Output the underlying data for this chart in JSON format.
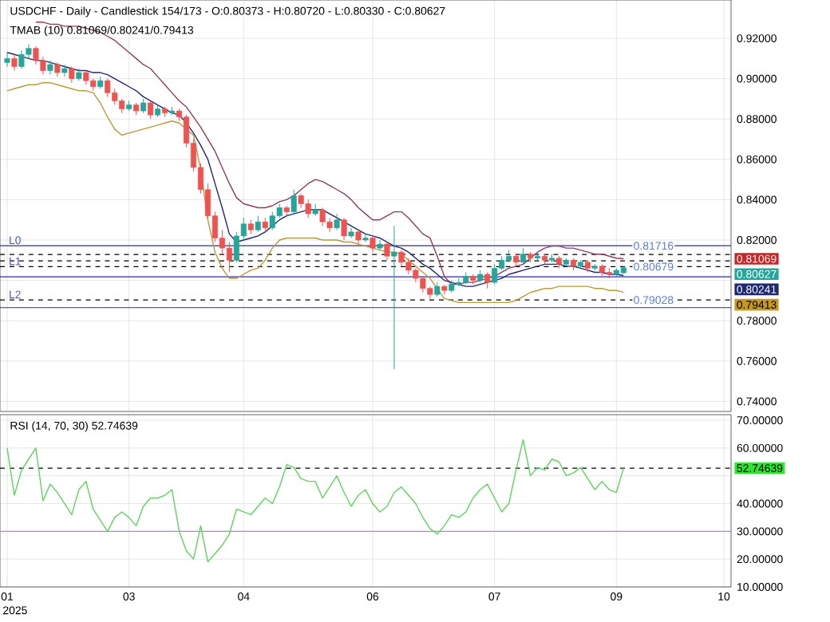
{
  "chart_data": [
    {
      "type": "candlestick",
      "title": "USDCHF - Daily - Candlestick 154/173 - O:0.80373 - H:0.80720 - L:0.80330 - C:0.80627",
      "subtitle": "TMAB (10) 0.81069/0.80241/0.79413",
      "categories": [
        "01",
        null,
        null,
        null,
        null,
        null,
        null,
        null,
        null,
        null,
        null,
        null,
        null,
        null,
        null,
        null,
        null,
        "03",
        null,
        null,
        null,
        null,
        null,
        null,
        null,
        null,
        null,
        null,
        null,
        null,
        null,
        null,
        null,
        "04",
        null,
        null,
        null,
        null,
        null,
        null,
        null,
        null,
        null,
        null,
        null,
        null,
        null,
        null,
        null,
        null,
        null,
        "06",
        null,
        null,
        null,
        null,
        null,
        null,
        null,
        null,
        null,
        null,
        null,
        null,
        null,
        null,
        null,
        null,
        "07",
        null,
        null,
        null,
        null,
        null,
        null,
        null,
        null,
        null,
        null,
        null,
        null,
        null,
        null,
        null,
        null,
        "09",
        null,
        null,
        null,
        null,
        null,
        null,
        null,
        null,
        null,
        null,
        null,
        null,
        null,
        null,
        "10"
      ],
      "ohlc": [
        [
          0.908,
          0.913,
          0.906,
          0.91
        ],
        [
          0.91,
          0.912,
          0.904,
          0.906
        ],
        [
          0.906,
          0.914,
          0.905,
          0.912
        ],
        [
          0.912,
          0.917,
          0.91,
          0.915
        ],
        [
          0.915,
          0.916,
          0.907,
          0.909
        ],
        [
          0.909,
          0.911,
          0.902,
          0.904
        ],
        [
          0.904,
          0.909,
          0.902,
          0.907
        ],
        [
          0.907,
          0.908,
          0.901,
          0.903
        ],
        [
          0.903,
          0.907,
          0.901,
          0.905
        ],
        [
          0.905,
          0.906,
          0.898,
          0.9
        ],
        [
          0.9,
          0.905,
          0.899,
          0.903
        ],
        [
          0.903,
          0.904,
          0.897,
          0.899
        ],
        [
          0.899,
          0.9,
          0.894,
          0.896
        ],
        [
          0.896,
          0.901,
          0.895,
          0.899
        ],
        [
          0.899,
          0.9,
          0.891,
          0.893
        ],
        [
          0.893,
          0.895,
          0.887,
          0.889
        ],
        [
          0.889,
          0.89,
          0.883,
          0.885
        ],
        [
          0.885,
          0.889,
          0.884,
          0.887
        ],
        [
          0.887,
          0.888,
          0.882,
          0.884
        ],
        [
          0.884,
          0.89,
          0.883,
          0.888
        ],
        [
          0.888,
          0.889,
          0.88,
          0.882
        ],
        [
          0.882,
          0.887,
          0.881,
          0.885
        ],
        [
          0.885,
          0.886,
          0.881,
          0.883
        ],
        [
          0.883,
          0.886,
          0.882,
          0.884
        ],
        [
          0.884,
          0.885,
          0.879,
          0.881
        ],
        [
          0.881,
          0.882,
          0.866,
          0.868
        ],
        [
          0.868,
          0.87,
          0.854,
          0.856
        ],
        [
          0.856,
          0.858,
          0.843,
          0.845
        ],
        [
          0.845,
          0.848,
          0.83,
          0.832
        ],
        [
          0.832,
          0.834,
          0.819,
          0.821
        ],
        [
          0.821,
          0.825,
          0.813,
          0.816
        ],
        [
          0.816,
          0.819,
          0.804,
          0.81
        ],
        [
          0.81,
          0.824,
          0.809,
          0.822
        ],
        [
          0.822,
          0.831,
          0.82,
          0.828
        ],
        [
          0.828,
          0.83,
          0.823,
          0.825
        ],
        [
          0.825,
          0.832,
          0.824,
          0.829
        ],
        [
          0.829,
          0.831,
          0.824,
          0.826
        ],
        [
          0.826,
          0.834,
          0.825,
          0.832
        ],
        [
          0.832,
          0.838,
          0.831,
          0.836
        ],
        [
          0.836,
          0.837,
          0.832,
          0.834
        ],
        [
          0.834,
          0.845,
          0.833,
          0.842
        ],
        [
          0.842,
          0.843,
          0.836,
          0.838
        ],
        [
          0.838,
          0.84,
          0.831,
          0.833
        ],
        [
          0.833,
          0.838,
          0.832,
          0.835
        ],
        [
          0.835,
          0.836,
          0.827,
          0.829
        ],
        [
          0.829,
          0.831,
          0.824,
          0.826
        ],
        [
          0.826,
          0.833,
          0.825,
          0.83
        ],
        [
          0.83,
          0.831,
          0.82,
          0.822
        ],
        [
          0.822,
          0.826,
          0.821,
          0.824
        ],
        [
          0.824,
          0.825,
          0.818,
          0.82
        ],
        [
          0.82,
          0.823,
          0.819,
          0.821
        ],
        [
          0.821,
          0.822,
          0.814,
          0.816
        ],
        [
          0.816,
          0.82,
          0.815,
          0.818
        ],
        [
          0.818,
          0.819,
          0.81,
          0.812
        ],
        [
          0.812,
          0.827,
          0.756,
          0.814
        ],
        [
          0.814,
          0.815,
          0.807,
          0.809
        ],
        [
          0.809,
          0.811,
          0.803,
          0.805
        ],
        [
          0.805,
          0.806,
          0.799,
          0.801
        ],
        [
          0.801,
          0.802,
          0.794,
          0.796
        ],
        [
          0.796,
          0.797,
          0.791,
          0.793
        ],
        [
          0.793,
          0.799,
          0.792,
          0.797
        ],
        [
          0.797,
          0.798,
          0.793,
          0.795
        ],
        [
          0.795,
          0.8,
          0.794,
          0.798
        ],
        [
          0.798,
          0.801,
          0.797,
          0.799
        ],
        [
          0.799,
          0.804,
          0.798,
          0.802
        ],
        [
          0.802,
          0.803,
          0.798,
          0.8
        ],
        [
          0.8,
          0.805,
          0.799,
          0.803
        ],
        [
          0.803,
          0.804,
          0.796,
          0.799
        ],
        [
          0.799,
          0.808,
          0.798,
          0.806
        ],
        [
          0.806,
          0.812,
          0.805,
          0.81
        ],
        [
          0.81,
          0.815,
          0.809,
          0.812
        ],
        [
          0.812,
          0.813,
          0.807,
          0.809
        ],
        [
          0.809,
          0.816,
          0.808,
          0.813
        ],
        [
          0.813,
          0.814,
          0.809,
          0.811
        ],
        [
          0.811,
          0.814,
          0.81,
          0.812
        ],
        [
          0.812,
          0.813,
          0.808,
          0.81
        ],
        [
          0.81,
          0.813,
          0.809,
          0.811
        ],
        [
          0.811,
          0.812,
          0.806,
          0.808
        ],
        [
          0.808,
          0.811,
          0.807,
          0.81
        ],
        [
          0.81,
          0.811,
          0.805,
          0.807
        ],
        [
          0.807,
          0.81,
          0.806,
          0.809
        ],
        [
          0.809,
          0.81,
          0.804,
          0.806
        ],
        [
          0.806,
          0.808,
          0.805,
          0.807
        ],
        [
          0.807,
          0.808,
          0.802,
          0.804
        ],
        [
          0.804,
          0.806,
          0.801,
          0.803
        ],
        [
          0.803,
          0.806,
          0.802,
          0.805
        ],
        [
          0.80373,
          0.8072,
          0.8033,
          0.80627
        ],
        null,
        null,
        null,
        null,
        null,
        null,
        null,
        null,
        null,
        null,
        null,
        null,
        null,
        null
      ],
      "colors": [
        "#26a69a",
        "#ef5350",
        "#26a69a",
        "#26a69a",
        "#ef5350",
        "#ef5350",
        "#26a69a",
        "#ef5350",
        "#26a69a",
        "#ef5350",
        "#26a69a",
        "#ef5350",
        "#ef5350",
        "#26a69a",
        "#ef5350",
        "#ef5350",
        "#ef5350",
        "#26a69a",
        "#ef5350",
        "#26a69a",
        "#ef5350",
        "#26a69a",
        "#ef5350",
        "#26a69a",
        "#ef5350",
        "#ef5350",
        "#ef5350",
        "#ef5350",
        "#ef5350",
        "#ef5350",
        "#ef5350",
        "#ef5350",
        "#26a69a",
        "#26a69a",
        "#ef5350",
        "#26a69a",
        "#ef5350",
        "#26a69a",
        "#26a69a",
        "#ef5350",
        "#26a69a",
        "#ef5350",
        "#ef5350",
        "#26a69a",
        "#ef5350",
        "#ef5350",
        "#26a69a",
        "#ef5350",
        "#26a69a",
        "#ef5350",
        "#26a69a",
        "#ef5350",
        "#26a69a",
        "#ef5350",
        "#26a69a",
        "#ef5350",
        "#ef5350",
        "#ef5350",
        "#ef5350",
        "#ef5350",
        "#26a69a",
        "#ef5350",
        "#26a69a",
        "#26a69a",
        "#26a69a",
        "#ef5350",
        "#26a69a",
        "#ef5350",
        "#26a69a",
        "#26a69a",
        "#26a69a",
        "#ef5350",
        "#26a69a",
        "#ef5350",
        "#26a69a",
        "#ef5350",
        "#26a69a",
        "#ef5350",
        "#26a69a",
        "#ef5350",
        "#26a69a",
        "#ef5350",
        "#26a69a",
        "#ef5350",
        "#ef5350",
        "#26a69a",
        "#26a69a",
        null,
        null,
        null,
        null,
        null,
        null,
        null,
        null,
        null,
        null,
        null,
        null,
        null,
        null
      ],
      "series": [
        {
          "type": "line",
          "color": "#8e3b5e",
          "values": [
            null,
            null,
            null,
            null,
            0.928,
            0.928,
            0.927,
            0.927,
            0.926,
            0.926,
            0.926,
            0.925,
            0.924,
            0.923,
            0.921,
            0.919,
            0.916,
            0.913,
            0.91,
            0.907,
            0.905,
            0.901,
            0.897,
            0.893,
            0.889,
            0.886,
            0.881,
            0.876,
            0.87,
            0.864,
            0.856,
            0.848,
            0.841,
            0.838,
            0.837,
            0.836,
            0.836,
            0.837,
            0.839,
            0.84,
            0.842,
            0.845,
            0.848,
            0.85,
            0.849,
            0.847,
            0.845,
            0.843,
            0.84,
            0.836,
            0.833,
            0.83,
            0.83,
            0.832,
            0.834,
            0.834,
            0.831,
            0.827,
            0.823,
            0.821,
            0.812,
            0.802,
            0.798,
            0.798,
            0.799,
            0.799,
            0.8,
            0.801,
            0.802,
            0.804,
            0.806,
            0.807,
            0.808,
            0.811,
            0.814,
            0.816,
            0.817,
            0.817,
            0.816,
            0.816,
            0.815,
            0.814,
            0.813,
            0.813,
            0.812,
            0.811,
            0.81069,
            null,
            null,
            null,
            null,
            null,
            null,
            null,
            null,
            null,
            null,
            null,
            null,
            null,
            null
          ]
        },
        {
          "type": "line",
          "color": "#1f2a6e",
          "values": [
            0.913,
            0.912,
            0.911,
            0.91,
            0.909,
            0.909,
            0.908,
            0.907,
            0.906,
            0.905,
            0.904,
            0.904,
            0.903,
            0.903,
            0.902,
            0.9,
            0.898,
            0.896,
            0.894,
            0.891,
            0.889,
            0.887,
            0.885,
            0.883,
            0.882,
            0.878,
            0.873,
            0.867,
            0.86,
            0.848,
            0.836,
            0.823,
            0.819,
            0.82,
            0.821,
            0.822,
            0.824,
            0.827,
            0.83,
            0.832,
            0.833,
            0.834,
            0.835,
            0.835,
            0.835,
            0.833,
            0.831,
            0.829,
            0.827,
            0.825,
            0.823,
            0.822,
            0.821,
            0.819,
            0.817,
            0.816,
            0.814,
            0.811,
            0.808,
            0.806,
            0.803,
            0.8,
            0.799,
            0.798,
            0.797,
            0.797,
            0.798,
            0.799,
            0.8,
            0.801,
            0.803,
            0.804,
            0.805,
            0.806,
            0.807,
            0.808,
            0.808,
            0.808,
            0.807,
            0.807,
            0.806,
            0.805,
            0.804,
            0.804,
            0.803,
            0.803,
            0.80241,
            null,
            null,
            null,
            null,
            null,
            null,
            null,
            null,
            null,
            null,
            null,
            null,
            null,
            null
          ]
        },
        {
          "type": "line",
          "color": "#b89a3a",
          "values": [
            0.894,
            0.895,
            0.896,
            0.897,
            0.897,
            0.898,
            0.898,
            0.897,
            0.896,
            0.895,
            0.894,
            0.894,
            0.893,
            0.888,
            0.881,
            0.875,
            0.872,
            0.873,
            0.874,
            0.875,
            0.876,
            0.877,
            0.878,
            0.879,
            0.878,
            0.875,
            0.872,
            0.855,
            0.83,
            0.814,
            0.806,
            0.801,
            0.801,
            0.803,
            0.805,
            0.806,
            0.81,
            0.816,
            0.82,
            0.821,
            0.821,
            0.821,
            0.821,
            0.821,
            0.82,
            0.82,
            0.82,
            0.819,
            0.819,
            0.818,
            0.817,
            0.816,
            0.815,
            0.814,
            0.814,
            0.813,
            0.81,
            0.807,
            0.804,
            0.801,
            0.796,
            0.791,
            0.79,
            0.789,
            0.789,
            0.789,
            0.789,
            0.789,
            0.789,
            0.789,
            0.789,
            0.79,
            0.792,
            0.794,
            0.795,
            0.796,
            0.796,
            0.797,
            0.797,
            0.797,
            0.797,
            0.797,
            0.796,
            0.796,
            0.795,
            0.795,
            0.79413,
            null,
            null,
            null,
            null,
            null,
            null,
            null,
            null,
            null,
            null,
            null,
            null,
            null,
            null
          ]
        }
      ],
      "ylim": [
        0.735,
        0.939
      ],
      "yticks": [
        {
          "value": 0.74,
          "label": "0.74000"
        },
        {
          "value": 0.76,
          "label": "0.76000"
        },
        {
          "value": 0.78,
          "label": "0.78000"
        },
        {
          "value": 0.8,
          "label": null
        },
        {
          "value": 0.82,
          "label": "0.82000"
        },
        {
          "value": 0.84,
          "label": "0.84000"
        },
        {
          "value": 0.86,
          "label": "0.86000"
        },
        {
          "value": 0.88,
          "label": "0.88000"
        },
        {
          "value": 0.9,
          "label": "0.90000"
        },
        {
          "value": 0.92,
          "label": "0.92000"
        }
      ],
      "grid": true,
      "tick_labels": "y",
      "ref_lines": [
        {
          "axis": "y",
          "value": 0.81716,
          "label": "0.81716",
          "color": "#2c2c9c",
          "line_style": "solid"
        },
        {
          "axis": "y",
          "value": 0.8128,
          "color": "#000000",
          "line_style": "dashed"
        },
        {
          "axis": "y",
          "value": 0.8097,
          "color": "#000000",
          "line_style": "dashed"
        },
        {
          "axis": "y",
          "value": 0.80679,
          "label": "0.80679",
          "color": "#000000",
          "line_style": "dashed"
        },
        {
          "axis": "y",
          "value": 0.8018,
          "color": "#2c2c9c",
          "line_style": "solid"
        },
        {
          "axis": "y",
          "value": 0.79028,
          "label": "0.79028",
          "color": "#000000",
          "line_style": "dashed"
        },
        {
          "axis": "y",
          "value": 0.7865,
          "color": "#2c2c9c",
          "line_style": "solid"
        }
      ],
      "annotations": [
        {
          "text": "L0",
          "x": "01",
          "y": 0.81716
        },
        {
          "text": "L1",
          "x": "01",
          "y": 0.80679
        },
        {
          "text": "L2",
          "x": "01",
          "y": 0.79028
        },
        "0.81069",
        "0.80627",
        "0.80241",
        "0.79413"
      ]
    },
    {
      "type": "line",
      "title": "RSI (14, 70, 30) 52.74639",
      "color": "#5fd35f",
      "categories": [
        "01",
        null,
        null,
        null,
        null,
        null,
        null,
        null,
        null,
        null,
        null,
        null,
        null,
        null,
        null,
        null,
        null,
        "03",
        null,
        null,
        null,
        null,
        null,
        null,
        null,
        null,
        null,
        null,
        null,
        null,
        null,
        null,
        null,
        "04",
        null,
        null,
        null,
        null,
        null,
        null,
        null,
        null,
        null,
        null,
        null,
        null,
        null,
        null,
        null,
        null,
        null,
        "06",
        null,
        null,
        null,
        null,
        null,
        null,
        null,
        null,
        null,
        null,
        null,
        null,
        null,
        null,
        null,
        null,
        "07",
        null,
        null,
        null,
        null,
        null,
        null,
        null,
        null,
        null,
        null,
        null,
        null,
        null,
        null,
        null,
        null,
        "09",
        null,
        null,
        null,
        null,
        null,
        null,
        null,
        null,
        null,
        null,
        null,
        null,
        null,
        null,
        "10"
      ],
      "values": [
        60,
        43,
        52,
        56,
        60,
        41,
        47,
        44,
        40,
        36,
        45,
        48,
        38,
        34,
        30,
        35,
        37,
        35,
        32,
        39,
        42,
        42,
        43,
        45,
        30,
        23,
        20,
        32,
        19,
        22,
        25,
        29,
        38,
        37,
        36,
        39,
        42,
        40,
        46,
        54,
        53,
        49,
        48,
        48,
        42,
        46,
        50,
        44,
        39,
        43,
        45,
        40,
        37,
        39,
        44,
        46,
        43,
        40,
        35,
        31,
        29,
        32,
        36,
        35,
        37,
        42,
        45,
        47,
        42,
        37,
        40,
        52,
        63,
        50,
        53,
        52,
        56,
        55,
        50,
        51,
        53,
        49,
        45,
        48,
        45,
        44,
        52.74639,
        null,
        null,
        null,
        null,
        null,
        null,
        null,
        null,
        null,
        null,
        null,
        null,
        null,
        null
      ],
      "ylim": [
        10,
        72
      ],
      "yticks": [
        {
          "value": 10,
          "label": "10.00000"
        },
        {
          "value": 20,
          "label": "20.00000"
        },
        {
          "value": 30,
          "label": "30.00000"
        },
        {
          "value": 40,
          "label": "40.00000"
        },
        {
          "value": 50,
          "label": null
        },
        {
          "value": 60,
          "label": "60.00000"
        },
        {
          "value": 70,
          "label": "70.00000"
        }
      ],
      "grid": true,
      "ref_lines": [
        {
          "axis": "y",
          "value": 30,
          "color": "#a888f0",
          "line_style": "solid"
        },
        {
          "axis": "y",
          "value": 52.74639,
          "color": "#000000",
          "line_style": "dashed"
        }
      ],
      "annotations": [
        "2025",
        "52.74639"
      ]
    }
  ]
}
